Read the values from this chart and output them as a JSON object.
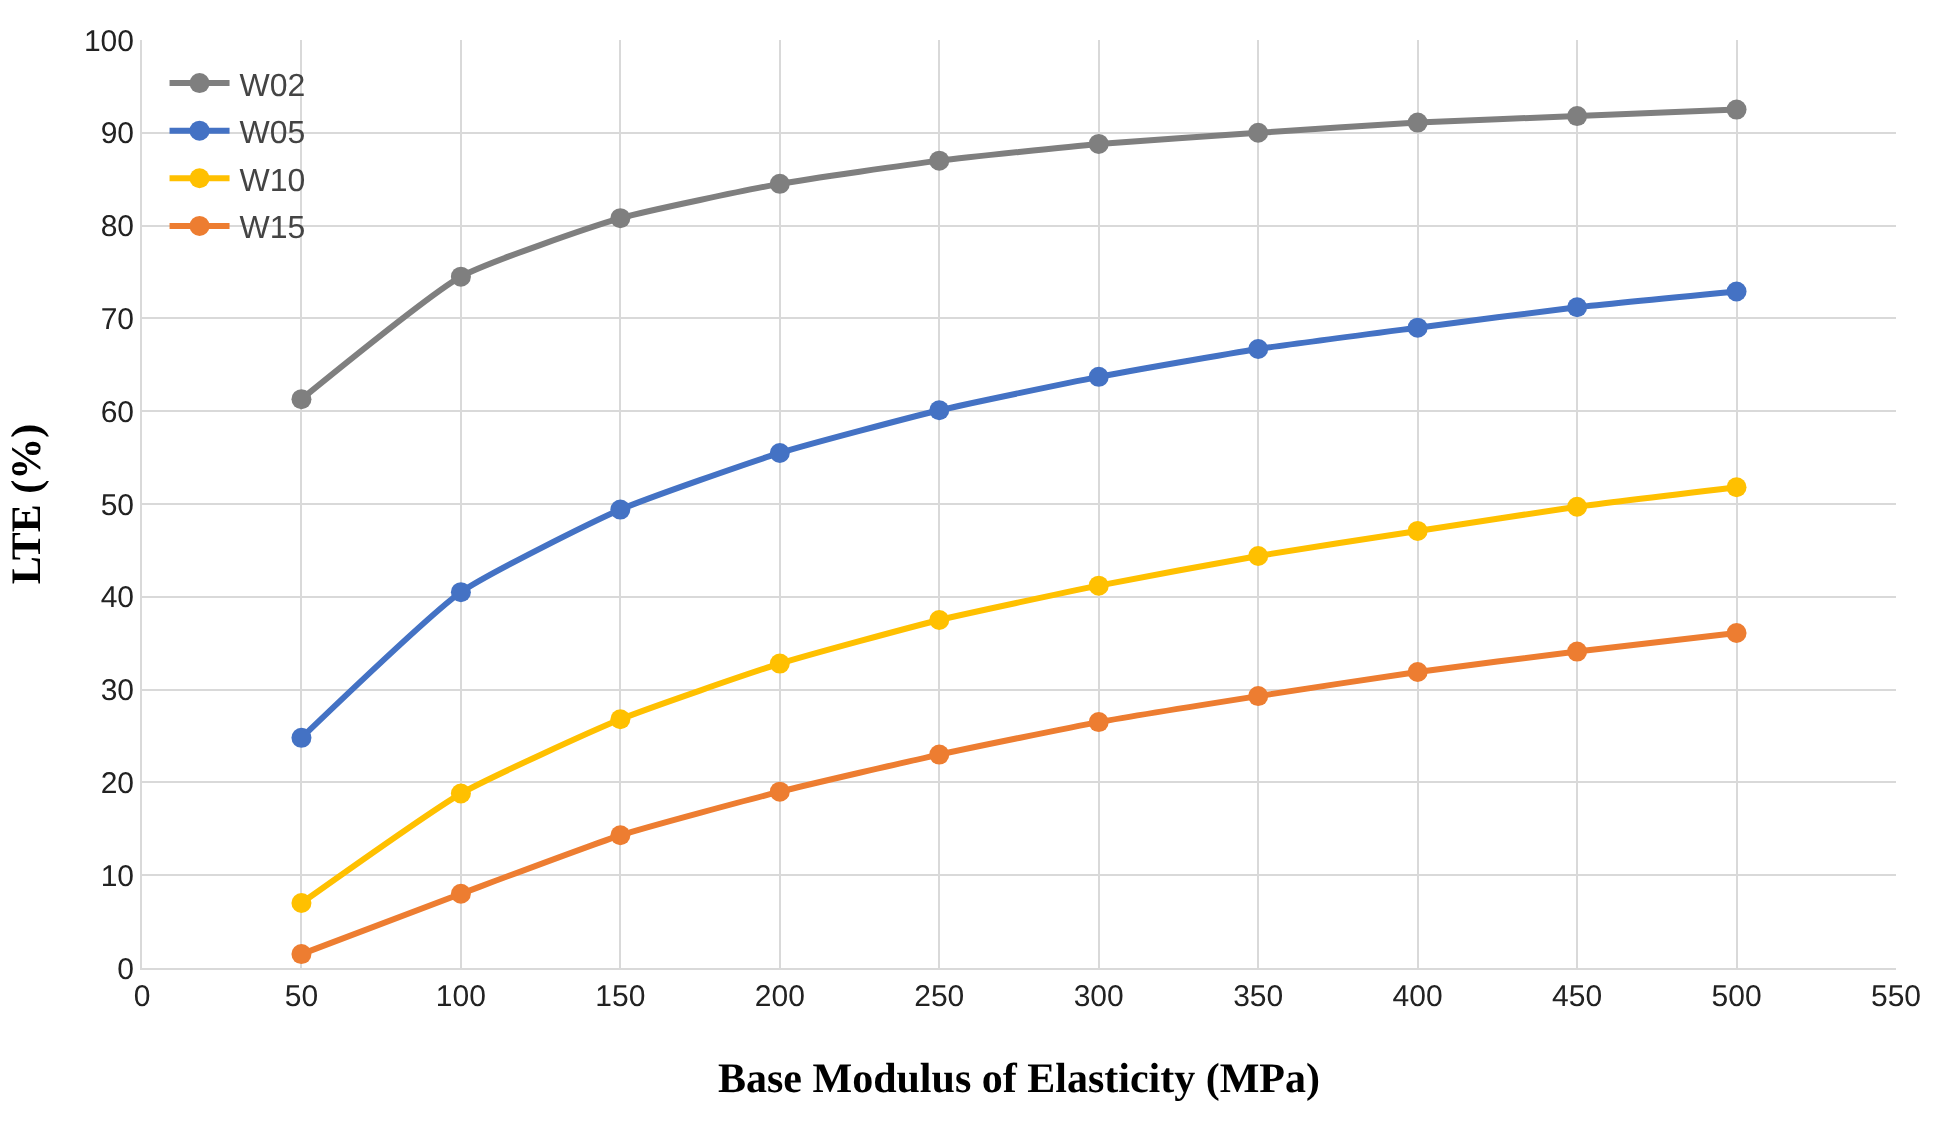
{
  "chart_data": {
    "type": "line",
    "xlabel": "Base Modulus of Elasticity (MPa)",
    "ylabel": "LTE (%)",
    "x": [
      50,
      100,
      150,
      200,
      250,
      300,
      350,
      400,
      450,
      500
    ],
    "series": [
      {
        "name": "W02",
        "color": "#7f7f7f",
        "values": [
          61.3,
          74.5,
          80.8,
          84.5,
          87,
          88.8,
          90,
          91.1,
          91.8,
          92.5
        ]
      },
      {
        "name": "W05",
        "color": "#4472c4",
        "values": [
          24.8,
          40.5,
          49.4,
          55.5,
          60.1,
          63.7,
          66.7,
          69,
          71.2,
          72.9
        ]
      },
      {
        "name": "W10",
        "color": "#ffc000",
        "values": [
          7,
          18.8,
          26.8,
          32.8,
          37.5,
          41.2,
          44.4,
          47.1,
          49.7,
          51.8
        ]
      },
      {
        "name": "W15",
        "color": "#ed7d31",
        "values": [
          1.5,
          8,
          14.3,
          19,
          23,
          26.5,
          29.3,
          31.9,
          34.1,
          36.1
        ]
      }
    ],
    "xlim": [
      0,
      550
    ],
    "xticks": [
      0,
      50,
      100,
      150,
      200,
      250,
      300,
      350,
      400,
      450,
      500,
      550
    ],
    "ylim": [
      0,
      100
    ],
    "yticks": [
      0,
      10,
      20,
      30,
      40,
      50,
      60,
      70,
      80,
      90,
      100
    ],
    "grid": true,
    "legend": "top left",
    "marker": "circle",
    "line_style": "solid"
  }
}
